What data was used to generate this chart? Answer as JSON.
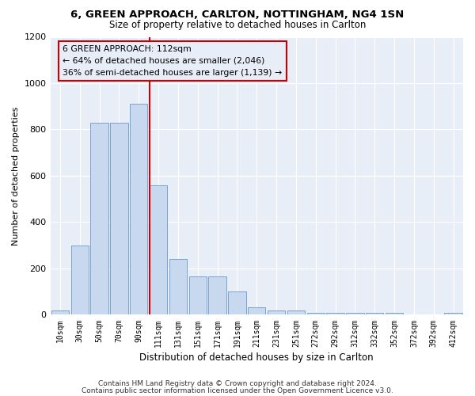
{
  "title": "6, GREEN APPROACH, CARLTON, NOTTINGHAM, NG4 1SN",
  "subtitle": "Size of property relative to detached houses in Carlton",
  "xlabel": "Distribution of detached houses by size in Carlton",
  "ylabel": "Number of detached properties",
  "bar_color": "#c8d8ee",
  "bar_edge_color": "#7aa4cc",
  "background_color": "#ffffff",
  "axes_background": "#e8eef8",
  "grid_color": "#ffffff",
  "categories": [
    "10sqm",
    "30sqm",
    "50sqm",
    "70sqm",
    "90sqm",
    "111sqm",
    "131sqm",
    "151sqm",
    "171sqm",
    "191sqm",
    "211sqm",
    "231sqm",
    "251sqm",
    "272sqm",
    "292sqm",
    "312sqm",
    "332sqm",
    "352sqm",
    "372sqm",
    "392sqm",
    "412sqm"
  ],
  "values": [
    20,
    300,
    830,
    830,
    910,
    560,
    240,
    165,
    165,
    100,
    33,
    20,
    20,
    10,
    10,
    10,
    10,
    10,
    0,
    0,
    10
  ],
  "vline_x": 5,
  "vline_color": "#cc0000",
  "annotation_title": "6 GREEN APPROACH: 112sqm",
  "annotation_line1": "← 64% of detached houses are smaller (2,046)",
  "annotation_line2": "36% of semi-detached houses are larger (1,139) →",
  "annotation_box_color": "#cc0000",
  "ylim": [
    0,
    1200
  ],
  "yticks": [
    0,
    200,
    400,
    600,
    800,
    1000,
    1200
  ],
  "footer1": "Contains HM Land Registry data © Crown copyright and database right 2024.",
  "footer2": "Contains public sector information licensed under the Open Government Licence v3.0."
}
